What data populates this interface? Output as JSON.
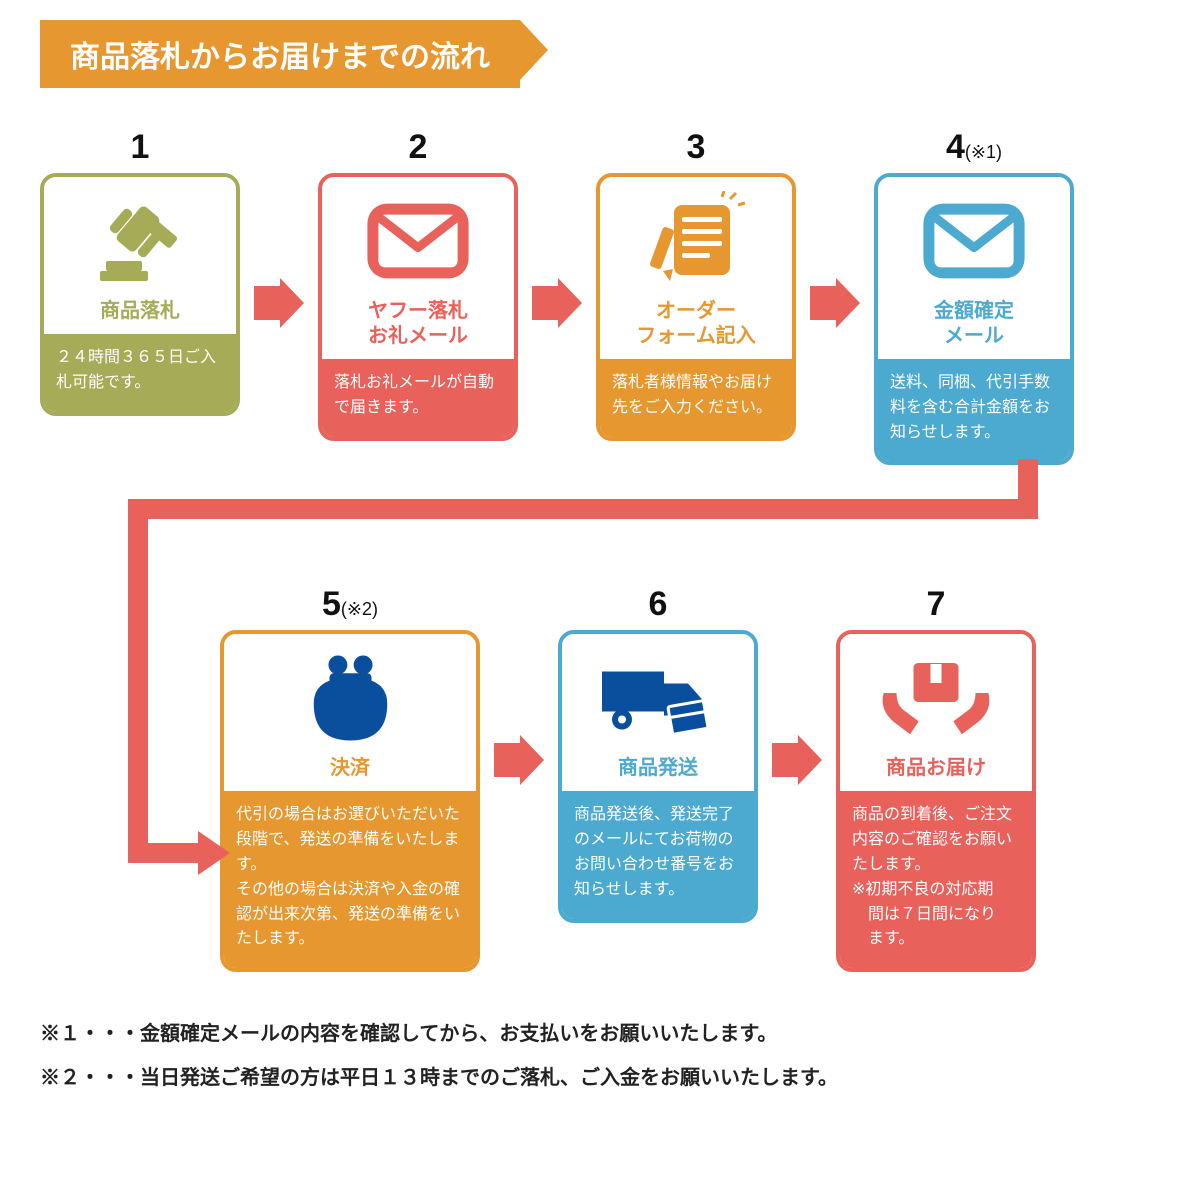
{
  "header": {
    "title": "商品落札からお届けまでの流れ"
  },
  "colors": {
    "arrow": "#e8615a",
    "banner": "#e7972f",
    "step1": "#a5ab56",
    "step2": "#e8615a",
    "step3": "#e7972f",
    "step4": "#4ca9cf",
    "step5_border": "#e7972f",
    "step5_icon": "#0a4f9e",
    "step6_border": "#4ca9cf",
    "step6_icon": "#0a4f9e",
    "step7": "#e8615a"
  },
  "steps": [
    {
      "num": "1",
      "note": "",
      "icon": "gavel",
      "title": "商品落札",
      "body": "２４時間３６５日ご入札可能です。"
    },
    {
      "num": "2",
      "note": "",
      "icon": "mail",
      "title": "ヤフー落札\nお礼メール",
      "body": "落札お礼メールが自動で届きます。"
    },
    {
      "num": "3",
      "note": "",
      "icon": "form",
      "title": "オーダー\nフォーム記入",
      "body": "落札者様情報やお届け先をご入力ください。"
    },
    {
      "num": "4",
      "note": "(※1)",
      "icon": "mail",
      "title": "金額確定\nメール",
      "body": "送料、同梱、代引手数料を含む合計金額をお知らせします。"
    },
    {
      "num": "5",
      "note": "(※2)",
      "icon": "purse",
      "title": "決済",
      "body": "代引の場合はお選びいただいた段階で、発送の準備をいたします。\nその他の場合は決済や入金の確認が出来次第、発送の準備をいたします。"
    },
    {
      "num": "6",
      "note": "",
      "icon": "truck",
      "title": "商品発送",
      "body": "商品発送後、発送完了のメールにてお荷物のお問い合わせ番号をお知らせします。"
    },
    {
      "num": "7",
      "note": "",
      "icon": "receive",
      "title": "商品お届け",
      "body": "商品の到着後、ご注文内容のご確認をお願いたします。\n※初期不良の対応期間は７日間になります。"
    }
  ],
  "footnotes": [
    "※１・・・金額確定メールの内容を確認してから、お支払いをお願いいたします。",
    "※２・・・当日発送ご希望の方は平日１３時までのご落札、ご入金をお願いいたします。"
  ]
}
